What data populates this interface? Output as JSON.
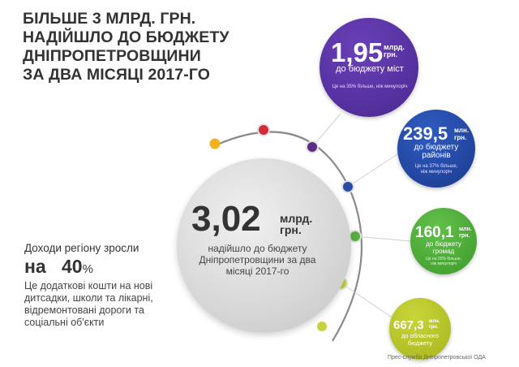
{
  "headline": {
    "line1": "БІЛЬШЕ 3 МЛРД. ГРН.",
    "line2": "НАДІЙШЛО ДО БЮДЖЕТУ",
    "line3": "ДНІПРОПЕТРОВЩИНИ",
    "line4": "ЗА ДВА МІСЯЦІ 2017-ГО"
  },
  "total": {
    "value": "3,02",
    "unit_line1": "млрд.",
    "unit_line2": "грн.",
    "description": "надійшло до бюджету Дніпропетровщини за два місяці 2017-го"
  },
  "bubbles": [
    {
      "value": "1,95",
      "unit_line1": "млрд.",
      "unit_line2": "грн.",
      "label": "до бюджету міст",
      "note": "Це на 35% більше, ніж минулоріч",
      "color": "#4f2d96"
    },
    {
      "value": "239,5",
      "unit_line1": "млн.",
      "unit_line2": "грн.",
      "label_line1": "до бюджету",
      "label_line2": "районів",
      "note_line1": "Це на 37% більше,",
      "note_line2": "ніж минулоріч",
      "color": "#1f3f94"
    },
    {
      "value": "160,1",
      "unit_line1": "млн.",
      "unit_line2": "грн.",
      "label_line1": "до бюджету",
      "label_line2": "громад",
      "note_line1": "Це на 25% більше,",
      "note_line2": "ніж минулоріч",
      "color": "#46a333"
    },
    {
      "value": "667,3",
      "unit_line1": "млн.",
      "unit_line2": "грн.",
      "label_line1": "до обласного",
      "label_line2": "бюджету",
      "color": "#b3c124"
    }
  ],
  "growth": {
    "intro": "Доходи регіону зросли",
    "prefix": "на",
    "value": "40",
    "suffix": "%",
    "note": "Це додаткові кошти на нові дитсадки, школи та лікарні, відремонтовані дороги та соціальні об'єкти"
  },
  "source": "Прес-служба Дніпропетровської ОДА",
  "arc_dot_colors": [
    "#f0b21f",
    "#d22b3a",
    "#5b2b8a",
    "#2a4ba6",
    "#56b040",
    "#c8d23a",
    "#c8d23a"
  ]
}
